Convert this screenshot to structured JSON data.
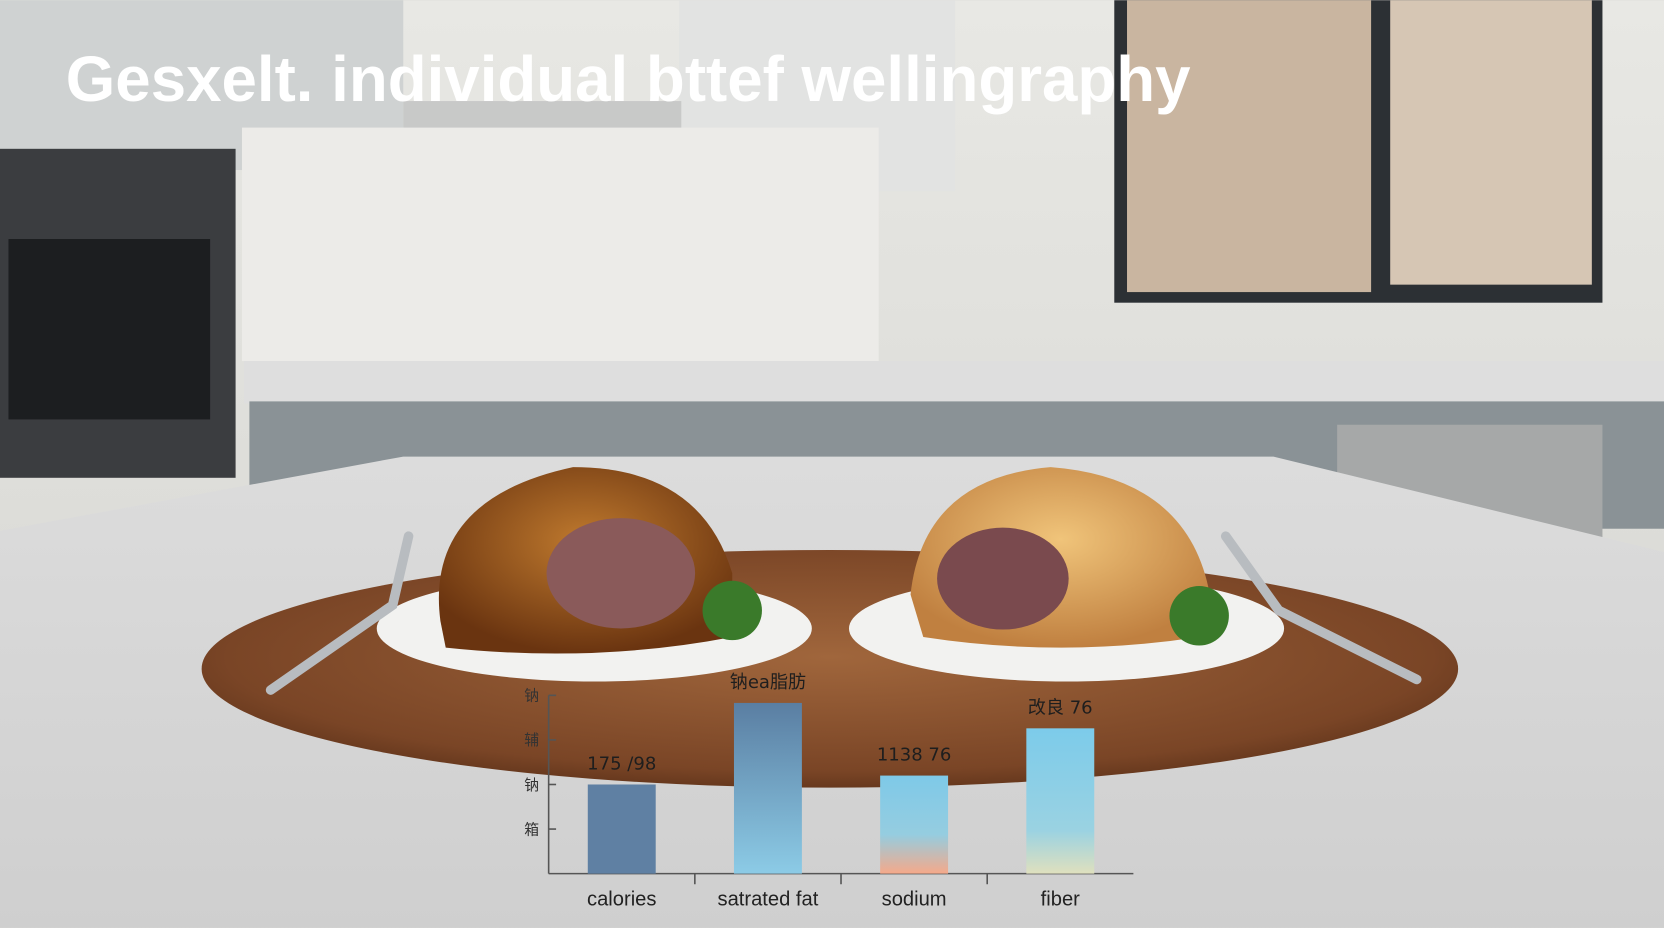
{
  "chart_data": {
    "type": "bar",
    "title": "Gesxelt. individual bttef wellingraphy",
    "categories": [
      "calories",
      "satrated fat",
      "sodium",
      "fiber"
    ],
    "values": [
      2.0,
      3.83,
      2.2,
      3.26
    ],
    "annotations": [
      "175 /98",
      "钠ea脂肪",
      "1138 76",
      "改良 76"
    ],
    "colors": [
      "#5f80a3",
      "url(#g1)",
      "url(#g2)",
      "url(#g3)"
    ],
    "ylim": [
      0,
      4
    ],
    "yticks": [
      {
        "value": 1,
        "label": "箱"
      },
      {
        "value": 2,
        "label": "钠"
      },
      {
        "value": 3,
        "label": "辅"
      },
      {
        "value": 4,
        "label": "钠"
      }
    ],
    "grid": false
  }
}
